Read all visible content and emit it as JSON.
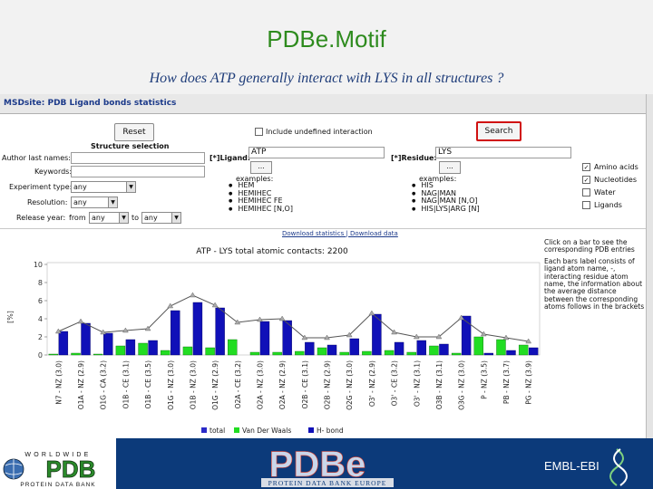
{
  "slide": {
    "title": "PDBe.Motif",
    "subtitle": "How does ATP generally interact with LYS in all structures ?"
  },
  "app": {
    "title": "MSDsite: PDB Ligand bonds statistics",
    "reset_label": "Reset",
    "search_label": "Search",
    "include_undefined_label": "Include undefined interaction",
    "structure_selection_label": "Structure selection",
    "author_label": "Author last names:",
    "keywords_label": "Keywords:",
    "experiment_label": "Experiment type:",
    "experiment_value": "any",
    "resolution_label": "Resolution:",
    "resolution_value": "any",
    "release_label": "Release year:",
    "release_from_label": "from",
    "release_from_value": "any",
    "release_to_label": "to",
    "release_to_value": "any",
    "ligand_label": "[*]Ligand:",
    "ligand_value": "ATP",
    "residue_label": "[*]Residue:",
    "residue_value": "LYS",
    "ellipsis_label": "...",
    "examples_label": "examples:",
    "ligand_examples": [
      "HEM",
      "HEMIHEC",
      "HEMIHEC FE",
      "HEMIHEC [N,O]"
    ],
    "residue_examples": [
      "HIS",
      "NAG|MAN",
      "NAG|MAN [N,O]",
      "HIS|LYS|ARG [N]"
    ],
    "options": [
      {
        "label": "Amino acids",
        "checked": true
      },
      {
        "label": "Nucleotides",
        "checked": true
      },
      {
        "label": "Water",
        "checked": false
      },
      {
        "label": "Ligands",
        "checked": false
      }
    ],
    "download_links": "Download statistics | Download data",
    "help_title": "Click on a bar to see the corresponding PDB entries",
    "help_text": "Each bars label consists of ligand atom name, -, interacting residue atom name, the information about the average distance between the corresponding atoms follows in the brackets"
  },
  "colors": {
    "total": "#2a2ac8",
    "vdw": "#22dd22",
    "hbond": "#1010b8",
    "line": "#555555",
    "title_green": "#2e8b1e",
    "subtitle_blue": "#1f3d7a"
  },
  "chart_data": {
    "type": "bar",
    "title": "ATP - LYS total atomic contacts: 2200",
    "ylabel": "[%]",
    "ylim": [
      0,
      10
    ],
    "yticks": [
      0,
      2,
      4,
      6,
      8,
      10
    ],
    "categories": [
      "N7 - NZ (3.0)",
      "O1A - NZ (2.9)",
      "O1G - CA (3.2)",
      "O1B - CE (3.1)",
      "O1B - CE (3.5)",
      "O1G - NZ (3.0)",
      "O1B - NZ (3.0)",
      "O1G - NZ (2.9)",
      "O2A - CE (3.2)",
      "O2A - NZ (3.0)",
      "O2A - NZ (2.9)",
      "O2B - CE (3.1)",
      "O2B - NZ (2.9)",
      "O2G - NZ (3.0)",
      "O3' - NZ (2.9)",
      "O3' - CE (3.2)",
      "O3' - NZ (3.1)",
      "O3B - NZ (3.1)",
      "O3G - NZ (3.0)",
      "P - NZ (3.5)",
      "PB - NZ (3.7)",
      "PG - NZ (3.9)"
    ],
    "series": [
      {
        "name": "total",
        "values": [
          2.6,
          3.7,
          2.5,
          2.7,
          2.9,
          5.4,
          6.6,
          5.5,
          3.6,
          3.9,
          4.0,
          1.9,
          1.9,
          2.2,
          4.6,
          2.5,
          2.0,
          2.0,
          4.1,
          2.3,
          1.9,
          1.5
        ]
      },
      {
        "name": "Van Der Waals",
        "values": [
          0.1,
          0.2,
          0.1,
          1.0,
          1.3,
          0.5,
          0.9,
          0.8,
          1.7,
          0.3,
          0.3,
          0.4,
          0.8,
          0.3,
          0.4,
          0.5,
          0.3,
          1.0,
          0.2,
          2.0,
          1.7,
          1.1
        ]
      },
      {
        "name": "H- bond",
        "values": [
          2.6,
          3.5,
          2.4,
          1.7,
          1.6,
          4.9,
          5.8,
          5.2,
          0.0,
          3.7,
          3.8,
          1.4,
          1.1,
          1.8,
          4.5,
          1.4,
          1.6,
          1.2,
          4.3,
          0.2,
          0.5,
          0.8
        ]
      }
    ],
    "legend_position": "bottom",
    "grid": false
  },
  "footer": {
    "wwpdb_top": "WORLDWIDE",
    "wwpdb_logo": "PDB",
    "wwpdb_bottom": "PROTEIN DATA BANK",
    "pdbe_logo": "PDBe",
    "pdbe_tagline": "PROTEIN DATA BANK EUROPE",
    "embl_label": "EMBL-EBI"
  }
}
